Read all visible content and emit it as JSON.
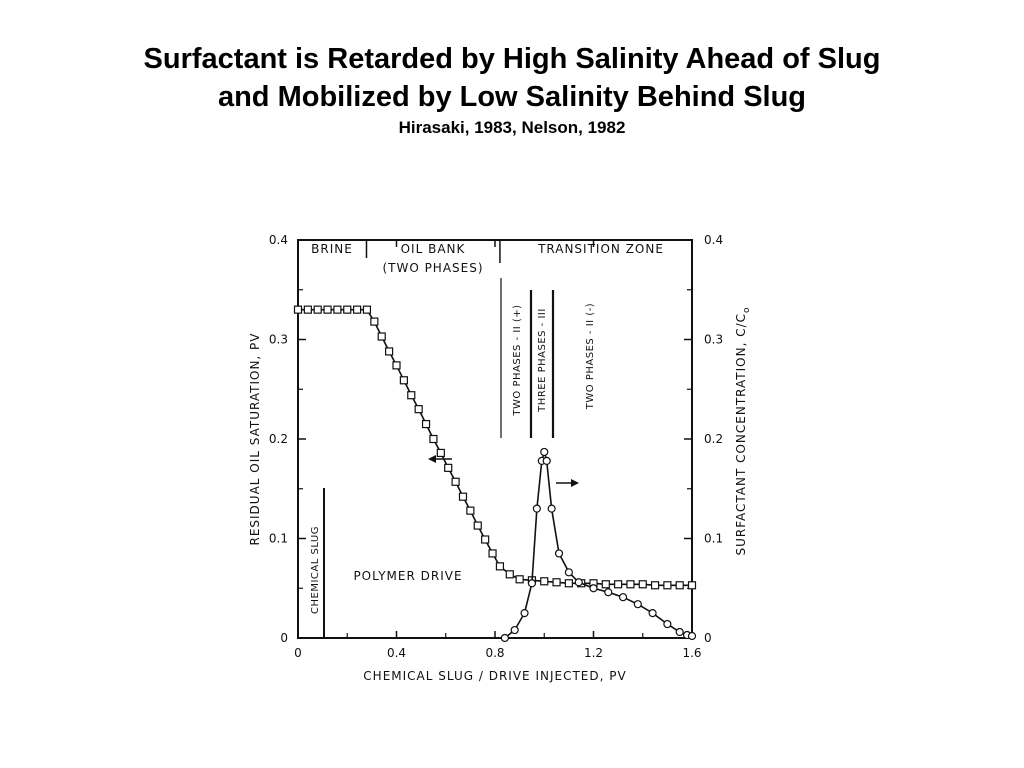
{
  "slide": {
    "title_line1": "Surfactant is Retarded by High Salinity Ahead of Slug",
    "title_line2": "and Mobilized by Low Salinity Behind Slug",
    "subtitle": "Hirasaki, 1983, Nelson, 1982"
  },
  "chart_data": {
    "type": "line",
    "xlabel": "CHEMICAL SLUG / DRIVE INJECTED, PV",
    "ylabel_left": "RESIDUAL OIL SATURATION, PV",
    "ylabel_right": "SURFACTANT CONCENTRATION, C/C",
    "ylabel_right_subscript": "o",
    "xlim": [
      0,
      1.6
    ],
    "ylim_left": [
      0,
      0.4
    ],
    "ylim_right": [
      0,
      0.4
    ],
    "x_ticks": [
      "0",
      "0.4",
      "0.8",
      "1.2",
      "1.6"
    ],
    "y_ticks_left": [
      "0",
      "0.1",
      "0.2",
      "0.3",
      "0.4"
    ],
    "y_ticks_right": [
      "0",
      "0.1",
      "0.2",
      "0.3",
      "0.4"
    ],
    "grid": false,
    "series": [
      {
        "axis": "left",
        "marker": "square",
        "x": [
          0,
          0.04,
          0.08,
          0.12,
          0.16,
          0.2,
          0.24,
          0.28,
          0.31,
          0.34,
          0.37,
          0.4,
          0.43,
          0.46,
          0.49,
          0.52,
          0.55,
          0.58,
          0.61,
          0.64,
          0.67,
          0.7,
          0.73,
          0.76,
          0.79,
          0.82,
          0.86,
          0.9,
          0.95,
          1.0,
          1.05,
          1.1,
          1.15,
          1.2,
          1.25,
          1.3,
          1.35,
          1.4,
          1.45,
          1.5,
          1.55,
          1.6
        ],
        "y": [
          0.33,
          0.33,
          0.33,
          0.33,
          0.33,
          0.33,
          0.33,
          0.33,
          0.318,
          0.303,
          0.288,
          0.274,
          0.259,
          0.244,
          0.23,
          0.215,
          0.2,
          0.186,
          0.171,
          0.157,
          0.142,
          0.128,
          0.113,
          0.099,
          0.085,
          0.072,
          0.064,
          0.059,
          0.058,
          0.057,
          0.056,
          0.055,
          0.055,
          0.055,
          0.054,
          0.054,
          0.054,
          0.054,
          0.053,
          0.053,
          0.053,
          0.053
        ]
      },
      {
        "axis": "right",
        "marker": "circle",
        "x": [
          0.84,
          0.88,
          0.92,
          0.95,
          0.97,
          0.99,
          1.0,
          1.01,
          1.03,
          1.06,
          1.1,
          1.14,
          1.2,
          1.26,
          1.32,
          1.38,
          1.44,
          1.5,
          1.55,
          1.58,
          1.6
        ],
        "y": [
          0.0,
          0.008,
          0.025,
          0.055,
          0.13,
          0.178,
          0.187,
          0.178,
          0.13,
          0.085,
          0.066,
          0.056,
          0.05,
          0.046,
          0.041,
          0.034,
          0.025,
          0.014,
          0.006,
          0.003,
          0.002
        ]
      }
    ],
    "zone_labels": {
      "brine": "BRINE",
      "oil_bank": "OIL BANK",
      "oil_bank_sub": "(TWO PHASES)",
      "transition": "TRANSITION ZONE",
      "two_phases_plus": "TWO PHASES - II (+)",
      "three_phases": "THREE PHASES - III",
      "two_phases_minus": "TWO PHASES - II (-)",
      "chemical_slug": "CHEMICAL SLUG",
      "polymer_drive": "POLYMER DRIVE"
    },
    "zone_boundaries_x": [
      0.27,
      0.82
    ]
  }
}
